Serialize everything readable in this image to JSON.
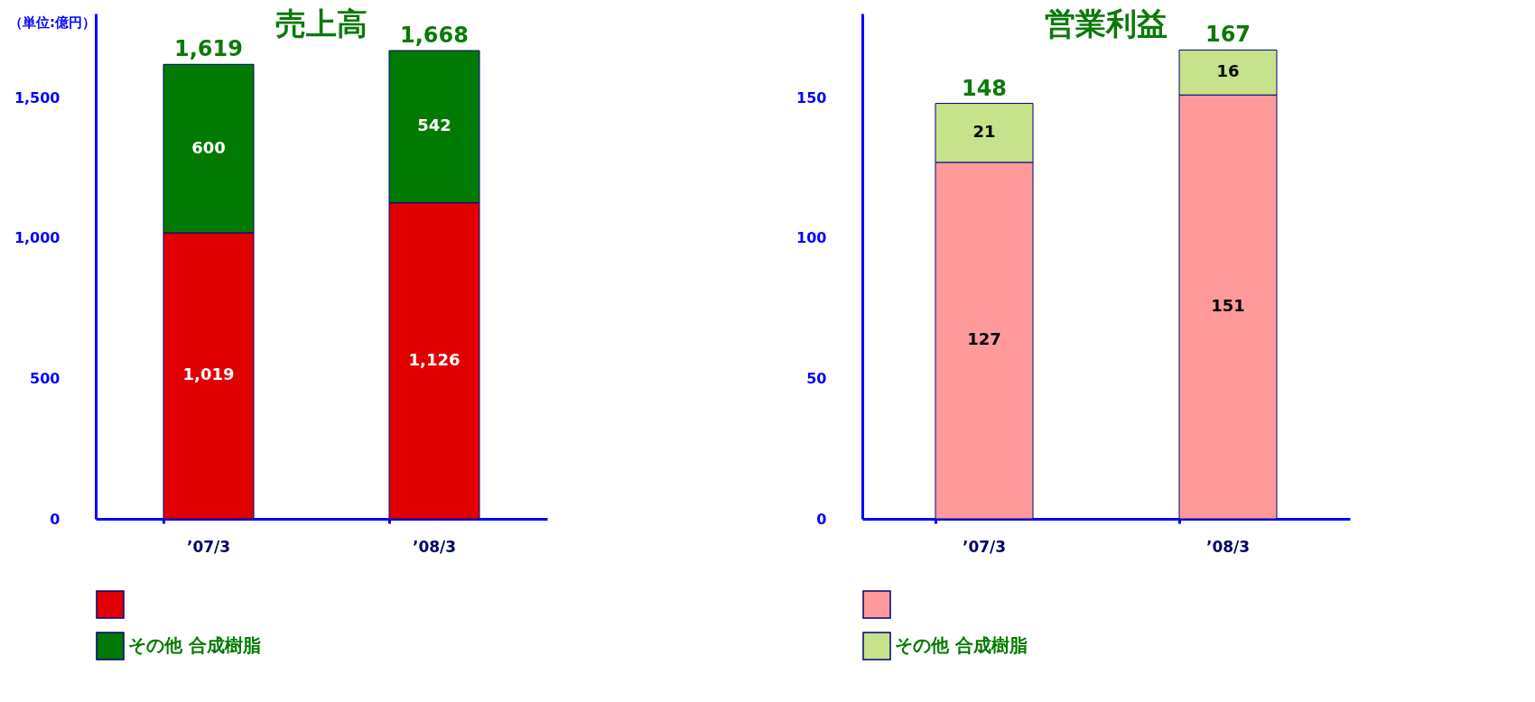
{
  "chart_data": [
    {
      "type": "bar",
      "title": "売上高",
      "annotations": [
        "（単位:億円）"
      ],
      "categories": [
        "’07/3",
        "’08/3"
      ],
      "stacked": true,
      "totals": [
        "1,619",
        "1,668"
      ],
      "ylim": [
        0,
        1800
      ],
      "yticks": [
        0,
        500,
        {
          "value": 1000,
          "label": "1,000"
        },
        {
          "value": 1500,
          "label": "1,500"
        }
      ],
      "legend": "bottom",
      "series": [
        {
          "color": "#e00000",
          "values": [
            1019,
            1126
          ],
          "value_labels": [
            "1,019",
            "1,126"
          ]
        },
        {
          "name": "その他 合成樹脂",
          "color": "#007a00",
          "values": [
            600,
            542
          ],
          "value_labels": [
            "600",
            "542"
          ]
        }
      ]
    },
    {
      "type": "bar",
      "title": "営業利益",
      "categories": [
        "’07/3",
        "’08/3"
      ],
      "stacked": true,
      "totals": [
        "148",
        "167"
      ],
      "ylim": [
        0,
        180
      ],
      "yticks": [
        0,
        50,
        100,
        150
      ],
      "legend": "bottom",
      "series": [
        {
          "color": "#ff9a9a",
          "values": [
            127,
            151
          ],
          "value_labels": [
            "127",
            "151"
          ]
        },
        {
          "name": "その他 合成樹脂",
          "color": "#c6e28a",
          "values": [
            21,
            16
          ],
          "value_labels": [
            "21",
            "16"
          ]
        }
      ]
    }
  ]
}
